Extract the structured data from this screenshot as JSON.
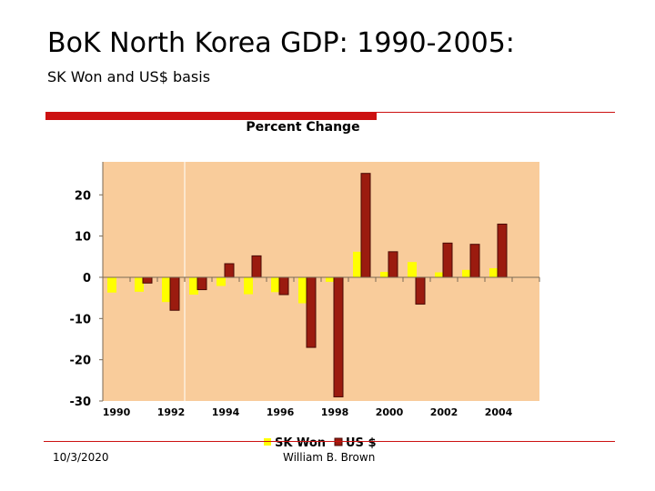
{
  "slide": {
    "title": "BoK North Korea GDP: 1990-2005:",
    "subtitle": "SK Won and US$ basis",
    "date": "10/3/2020",
    "author": "William B. Brown"
  },
  "colors": {
    "accent": "#cc1111",
    "plot_background": "#f9cc9b",
    "sk_won": "#ffff00",
    "us_dollar": "#9b1b0f"
  },
  "chart_data": {
    "type": "bar",
    "title": "Percent Change",
    "xlabel": "",
    "ylabel": "",
    "ylim": [
      -30,
      28
    ],
    "yticks": [
      20,
      10,
      0,
      -10,
      -20,
      -30
    ],
    "xtick_labels": [
      "1990",
      "1992",
      "1994",
      "1996",
      "1998",
      "2000",
      "2002",
      "2004"
    ],
    "categories": [
      "1990",
      "1991",
      "1992",
      "1993",
      "1994",
      "1995",
      "1996",
      "1997",
      "1998",
      "1999",
      "2000",
      "2001",
      "2002",
      "2003",
      "2004",
      "2005"
    ],
    "series": [
      {
        "name": "SK Won",
        "color": "#ffff00",
        "values": [
          -3.7,
          -3.5,
          -6.0,
          -4.2,
          -2.1,
          -4.1,
          -3.6,
          -6.3,
          -1.1,
          6.2,
          1.3,
          3.7,
          1.2,
          1.8,
          2.2,
          0
        ]
      },
      {
        "name": "US $",
        "color": "#9b1b0f",
        "values": [
          0,
          -1.4,
          -8.0,
          -3.0,
          3.3,
          5.2,
          -4.2,
          -17.0,
          -29.0,
          25.2,
          6.2,
          -6.5,
          8.3,
          8.0,
          12.9,
          0
        ]
      }
    ],
    "legend": "bottom-center"
  }
}
